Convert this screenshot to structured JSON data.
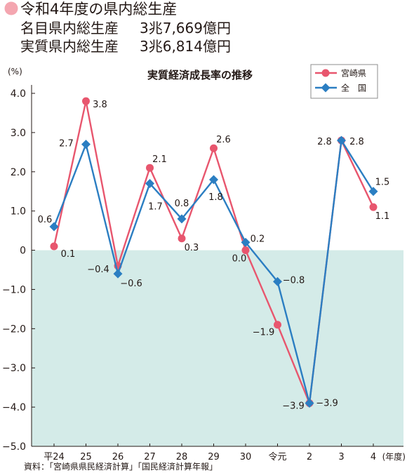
{
  "header": {
    "title": "令和4年度の県内総生産",
    "bullet_color": "#f4a6b0",
    "lines": [
      {
        "label": "名目県内総生産",
        "value": "3兆7,669億円"
      },
      {
        "label": "実質県内総生産",
        "value": "3兆6,814億円"
      }
    ]
  },
  "chart_data": {
    "type": "line",
    "title": "実質経済成長率の推移",
    "ylabel": "(%)",
    "xlabel": "(年度)",
    "categories": [
      "平24",
      "25",
      "26",
      "27",
      "28",
      "29",
      "30",
      "令元",
      "2",
      "3",
      "4"
    ],
    "ylim": [
      -5,
      4
    ],
    "yticks": [
      4,
      3,
      2,
      1,
      0,
      -1,
      -2,
      -3,
      -4,
      -5
    ],
    "ytick_labels": [
      "4.0",
      "3.0",
      "2.0",
      "1.0",
      "0",
      "−1.0",
      "−2.0",
      "−3.0",
      "−4.0",
      "−5.0"
    ],
    "grid": false,
    "negative_region_fill": "#d4ebe8",
    "legend": {
      "position": "top-right"
    },
    "series": [
      {
        "name": "宮崎県",
        "marker": "circle",
        "color": "#e8566e",
        "values": [
          0.1,
          3.8,
          -0.4,
          2.1,
          0.3,
          2.6,
          0.0,
          -1.9,
          -3.9,
          2.8,
          1.1
        ],
        "labels": [
          "0.1",
          "3.8",
          "−0.4",
          "2.1",
          "0.3",
          "2.6",
          "0.0",
          "−1.9",
          "−3.9",
          "2.8",
          "1.1"
        ]
      },
      {
        "name": "全　国",
        "marker": "diamond",
        "color": "#2b7ec2",
        "values": [
          0.6,
          2.7,
          -0.6,
          1.7,
          0.8,
          1.8,
          0.2,
          -0.8,
          -3.9,
          2.8,
          1.5
        ],
        "labels": [
          "0.6",
          "2.7",
          "−0.6",
          "1.7",
          "0.8",
          "1.8",
          "0.2",
          "−0.8",
          "−3.9",
          "2.8",
          "1.5"
        ]
      }
    ]
  },
  "source": "資料：「宮崎県県民経済計算」「国民経済計算年報」"
}
